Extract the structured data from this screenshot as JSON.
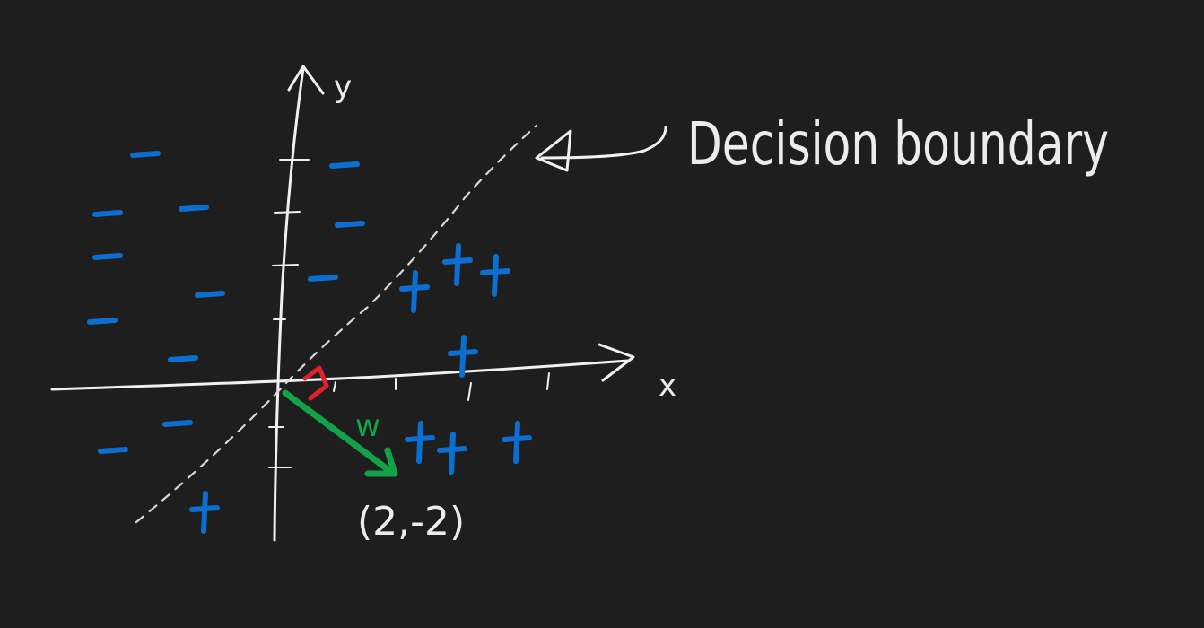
{
  "axes": {
    "x_label": "x",
    "y_label": "y"
  },
  "annotation": {
    "text": "Decision boundary"
  },
  "vector": {
    "name": "w",
    "coords_label": "(2,-2)"
  },
  "classes": {
    "positive_symbol": "+",
    "negative_symbol": "−"
  },
  "colors": {
    "background": "#1e1e1e",
    "ink": "#f0f0f0",
    "points": "#0a6fd0",
    "vector": "#12a24a",
    "right_angle": "#e0202a"
  },
  "points": {
    "negative": [
      {
        "x": -2.5,
        "y": 4.3
      },
      {
        "x": -1.6,
        "y": 3.3
      },
      {
        "x": -3.2,
        "y": 3.2
      },
      {
        "x": -3.2,
        "y": 2.4
      },
      {
        "x": 1.2,
        "y": 4.1
      },
      {
        "x": 1.3,
        "y": 3.0
      },
      {
        "x": 0.8,
        "y": 2.0
      },
      {
        "x": -1.3,
        "y": 1.7
      },
      {
        "x": -3.3,
        "y": 1.2
      },
      {
        "x": -1.8,
        "y": 0.5
      },
      {
        "x": -1.9,
        "y": -0.7
      },
      {
        "x": -3.1,
        "y": -1.2
      }
    ],
    "positive": [
      {
        "x": 3.3,
        "y": 2.3
      },
      {
        "x": 4.0,
        "y": 2.1
      },
      {
        "x": 2.5,
        "y": 1.8
      },
      {
        "x": 3.4,
        "y": 0.6
      },
      {
        "x": 2.6,
        "y": -1.0
      },
      {
        "x": 3.2,
        "y": -1.2
      },
      {
        "x": 4.4,
        "y": -1.0
      },
      {
        "x": -1.4,
        "y": -2.3
      }
    ]
  }
}
